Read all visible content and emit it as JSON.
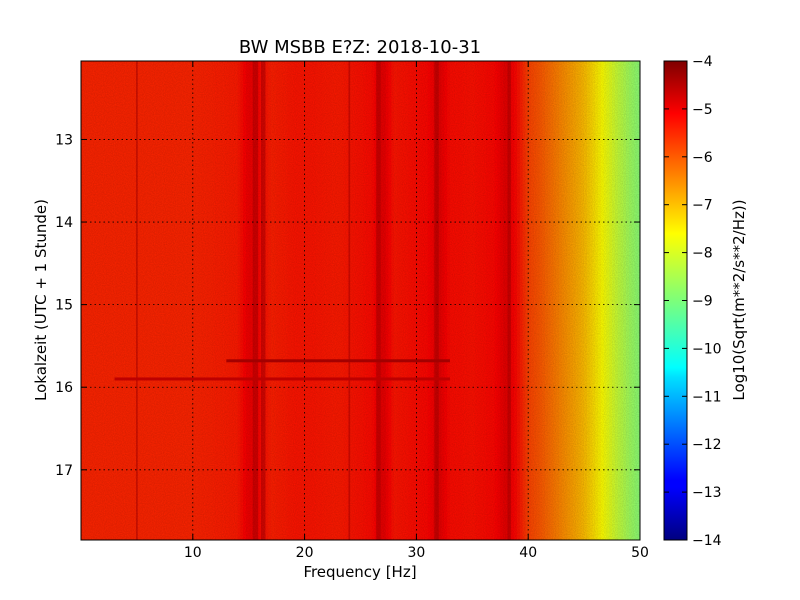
{
  "chart_data": {
    "type": "heatmap",
    "title": "BW MSBB E?Z: 2018-10-31",
    "xlabel": "Frequency [Hz]",
    "ylabel": "Lokalzeit (UTC + 1 Stunde)",
    "xlim": [
      0,
      50
    ],
    "ylim": [
      12.05,
      17.85
    ],
    "y_inverted": true,
    "xticks": [
      10,
      20,
      30,
      40,
      50
    ],
    "yticks": [
      13,
      14,
      15,
      16,
      17
    ],
    "grid": true,
    "colorbar": {
      "label": "Log10(Sqrt(m**2/s**2/Hz))",
      "range": [
        -14,
        -4
      ],
      "ticks": [
        -4,
        -5,
        -6,
        -7,
        -8,
        -9,
        -10,
        -11,
        -12,
        -13,
        -14
      ],
      "colormap": "jet"
    },
    "spectrum_profile": {
      "frequencies_hz": [
        0,
        5,
        10,
        12,
        14,
        15,
        16,
        17,
        19,
        21,
        23,
        25,
        26,
        27,
        28,
        30,
        31,
        32,
        33,
        35,
        37,
        38,
        39,
        40,
        41,
        42,
        43,
        44,
        45,
        46,
        47,
        48,
        49,
        50
      ],
      "log_values": [
        -5.6,
        -5.6,
        -5.6,
        -5.55,
        -5.5,
        -5.1,
        -5.3,
        -5.55,
        -5.45,
        -5.45,
        -5.5,
        -5.4,
        -5.35,
        -5.0,
        -5.45,
        -5.35,
        -5.3,
        -5.0,
        -5.35,
        -5.4,
        -5.3,
        -5.0,
        -5.35,
        -5.9,
        -6.1,
        -6.35,
        -6.6,
        -6.85,
        -7.1,
        -7.5,
        -7.9,
        -8.3,
        -8.65,
        -8.9
      ]
    },
    "narrow_lines_hz": [
      [
        15.6,
        0.5
      ],
      [
        16.3,
        0.4
      ],
      [
        26.6,
        0.4
      ],
      [
        31.8,
        0.4
      ],
      [
        38.3,
        0.3
      ],
      [
        5,
        0.15
      ],
      [
        24,
        0.15
      ]
    ],
    "transient_rows": [
      {
        "time": 15.68,
        "from_hz": 13,
        "to_hz": 33,
        "value": -4.35
      },
      {
        "time": 15.9,
        "from_hz": 3,
        "to_hz": 33,
        "value": -4.6
      }
    ]
  }
}
